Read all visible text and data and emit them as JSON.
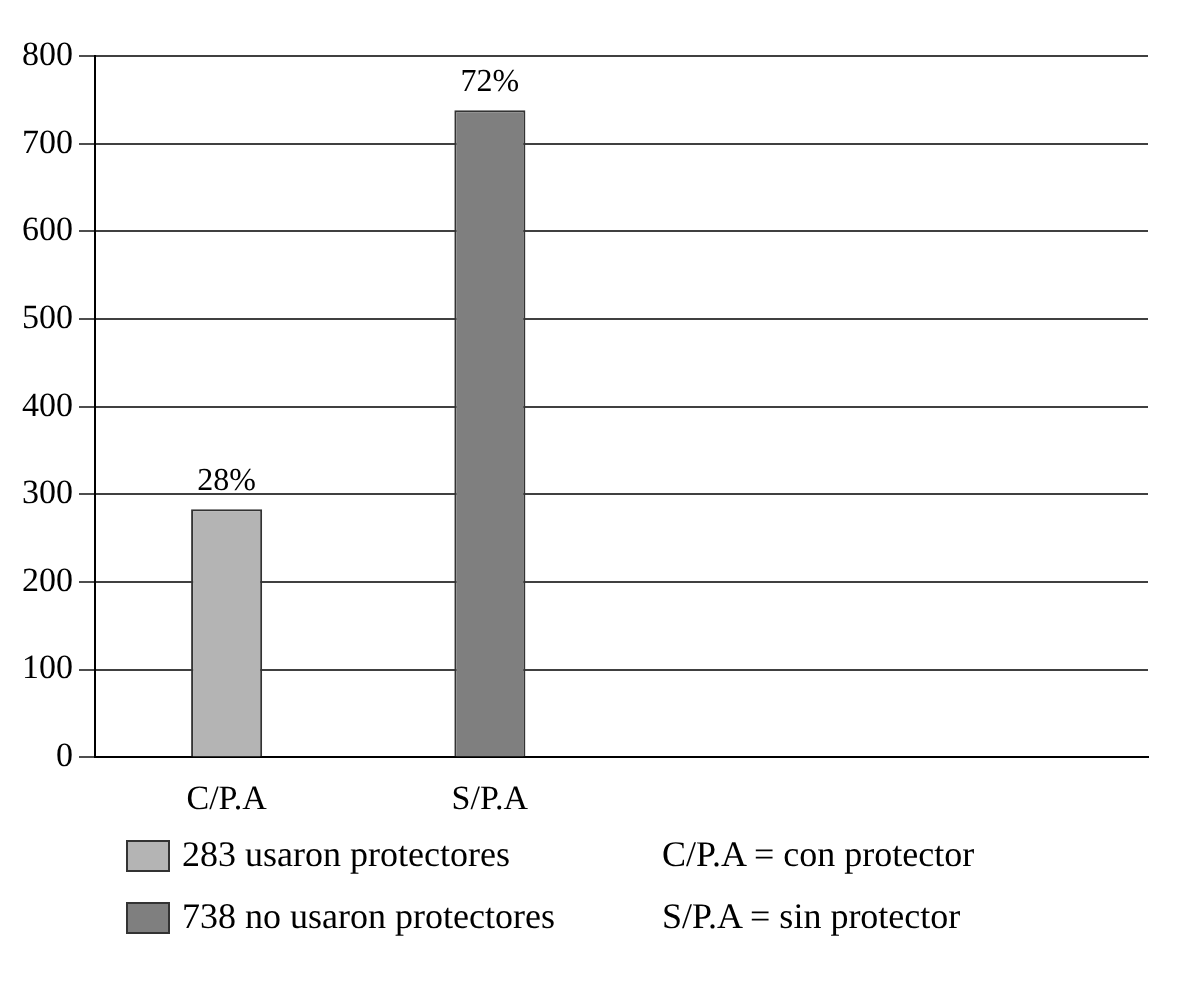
{
  "chart_data": {
    "type": "bar",
    "categories": [
      "C/P.A",
      "S/P.A",
      null,
      null
    ],
    "series": [
      {
        "name": "283 usaron protectores",
        "color": "#b4b4b4",
        "values": [
          283,
          null,
          null,
          null
        ]
      },
      {
        "name": "738 no usaron protectores",
        "color": "#7f7f7f",
        "values": [
          null,
          738,
          null,
          null
        ]
      }
    ],
    "ylim": [
      0,
      800
    ],
    "yticks": [
      0,
      100,
      200,
      300,
      400,
      500,
      600,
      700,
      800
    ],
    "grid": "y",
    "legend": "bottom",
    "annotations": [
      {
        "text": "28%",
        "x": "C/P.A",
        "y": 283
      },
      {
        "text": "72%",
        "x": "S/P.A",
        "y": 738
      },
      "C/P.A = con protector",
      "S/P.A = sin protector"
    ]
  }
}
